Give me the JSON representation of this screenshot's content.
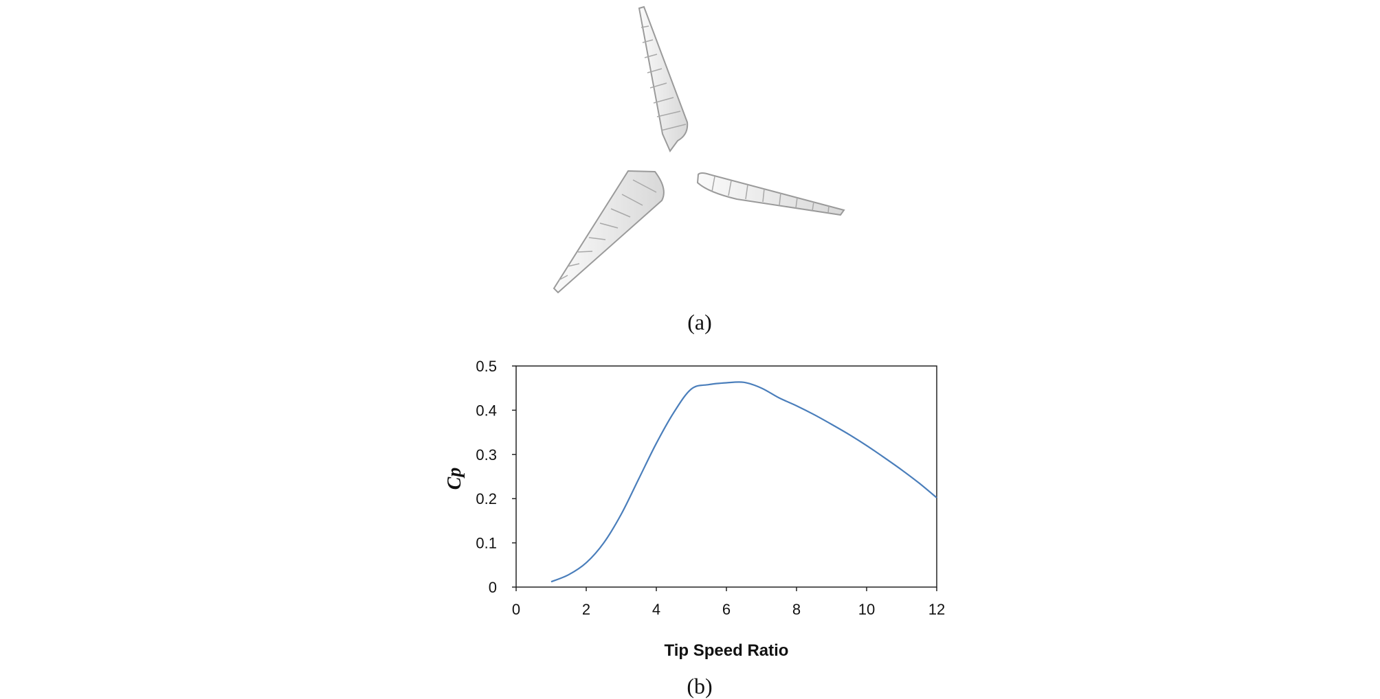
{
  "figure": {
    "caption_a": "(a)",
    "caption_b": "(b)"
  },
  "illustration": {
    "icon": "three-blade-wind-turbine-rotor",
    "blade_fill": "#f2f2f2",
    "blade_stroke": "#9a9a9a"
  },
  "chart_data": {
    "type": "line",
    "xlabel": "Tip Speed Ratio",
    "ylabel": "Cp",
    "xlim": [
      0,
      12
    ],
    "ylim": [
      0,
      0.5
    ],
    "xticks": [
      "0",
      "2",
      "4",
      "6",
      "8",
      "10",
      "12"
    ],
    "yticks": [
      "0",
      "0.1",
      "0.2",
      "0.3",
      "0.4",
      "0.5"
    ],
    "grid": false,
    "legend": "none",
    "line_color": "#4a7ebb",
    "series": [
      {
        "x": [
          1,
          1.5,
          2,
          2.5,
          3,
          3.5,
          4,
          4.5,
          5,
          5.5,
          6,
          6.5,
          7,
          7.5,
          8,
          8.5,
          9,
          9.5,
          10,
          10.5,
          11,
          11.5,
          12
        ],
        "y": [
          0.012,
          0.028,
          0.055,
          0.1,
          0.165,
          0.245,
          0.325,
          0.395,
          0.448,
          0.458,
          0.462,
          0.463,
          0.45,
          0.428,
          0.41,
          0.39,
          0.368,
          0.345,
          0.32,
          0.293,
          0.265,
          0.235,
          0.202
        ]
      }
    ]
  }
}
